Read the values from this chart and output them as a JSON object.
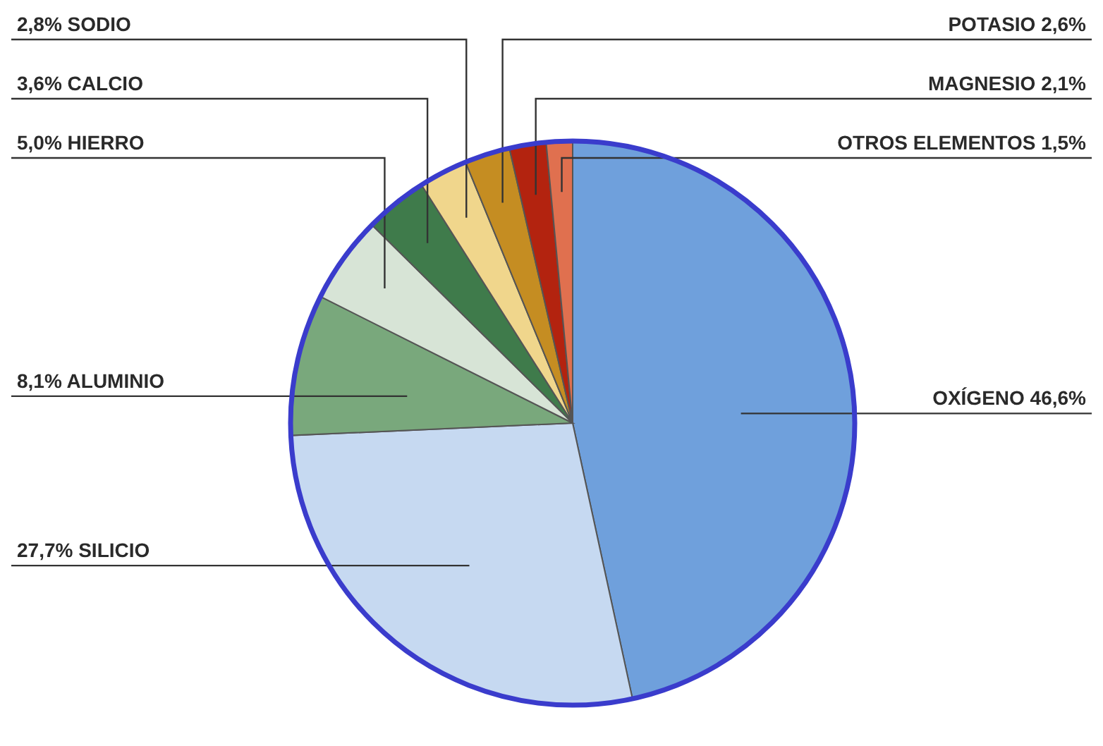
{
  "chart_data": {
    "type": "pie",
    "categories": [
      "OXÍGENO",
      "SILICIO",
      "ALUMINIO",
      "HIERRO",
      "CALCIO",
      "SODIO",
      "POTASIO",
      "MAGNESIO",
      "OTROS ELEMENTOS"
    ],
    "values": [
      46.6,
      27.7,
      8.1,
      5.0,
      3.6,
      2.8,
      2.6,
      2.1,
      1.5
    ],
    "value_labels": [
      "46,6%",
      "27,7%",
      "8,1%",
      "5,0%",
      "3,6%",
      "2,8%",
      "2,6%",
      "2,1%",
      "1,5%"
    ],
    "colors": [
      "#6fa0dc",
      "#c6d9f1",
      "#79a87c",
      "#d7e4d6",
      "#3f7b4b",
      "#f0d68c",
      "#c58d22",
      "#b3230f",
      "#e0704f"
    ],
    "legend": false
  }
}
